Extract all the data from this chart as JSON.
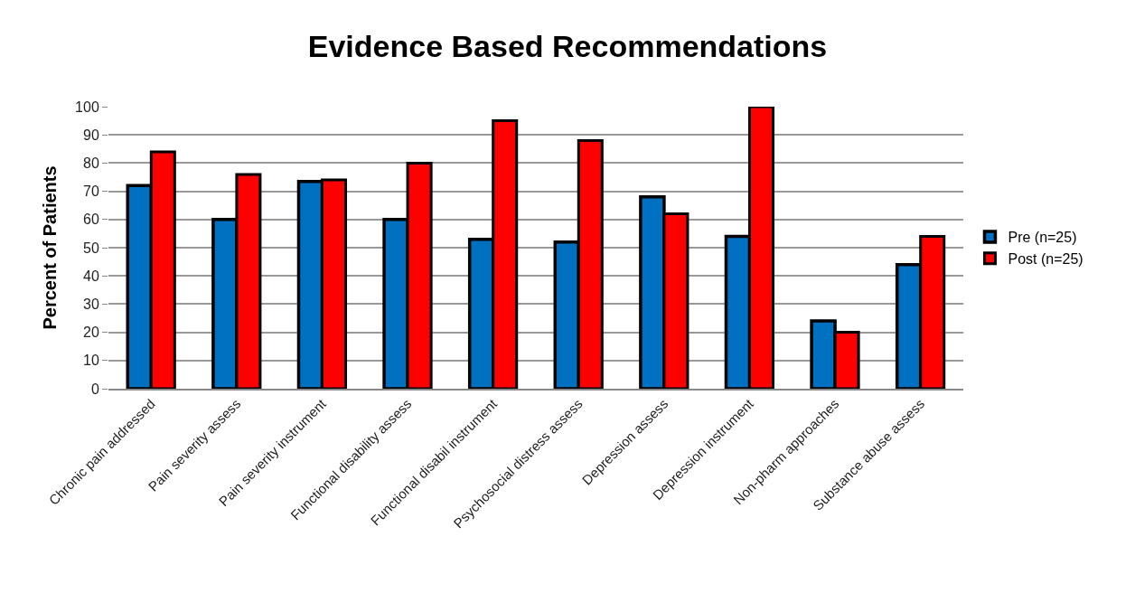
{
  "chart_data": {
    "type": "bar",
    "title": "Evidence Based Recommendations",
    "ylabel": "Percent of Patients",
    "categories": [
      "Chronic pain addressed",
      "Pain severity assess",
      "Pain severity instrument",
      "Functional disability assess",
      "Functional disabil instrument",
      "Psychosocial distress assess",
      "Depression assess",
      "Depression instrument",
      "Non-pharm approaches",
      "Substance abuse assess"
    ],
    "series": [
      {
        "name": "Pre (n=25)",
        "color": "#0070c0",
        "values": [
          72,
          60,
          73.5,
          60,
          53,
          52,
          68,
          54,
          24,
          44
        ]
      },
      {
        "name": "Post (n=25)",
        "color": "#ff0000",
        "values": [
          84,
          76,
          74,
          80,
          95,
          88,
          62,
          100,
          20,
          54
        ]
      }
    ],
    "ylim": [
      0,
      100
    ],
    "yticks": [
      0,
      10,
      20,
      30,
      40,
      50,
      60,
      70,
      80,
      90,
      100
    ],
    "grid": "y",
    "legend": "right"
  }
}
